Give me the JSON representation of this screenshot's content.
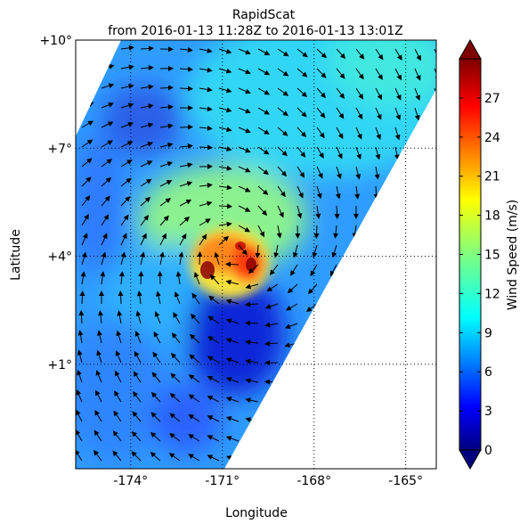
{
  "chart_data": {
    "type": "heatmap",
    "title": "RapidScat",
    "subtitle": "from 2016-01-13 11:28Z to 2016-01-13 13:01Z",
    "xlabel": "Longitude",
    "ylabel": "Latitude",
    "xlim": [
      -175.8,
      -164.0
    ],
    "ylim": [
      -1.9,
      10.0
    ],
    "x_ticks": [
      {
        "value": -174,
        "label": "-174°"
      },
      {
        "value": -171,
        "label": "-171°"
      },
      {
        "value": -168,
        "label": "-168°"
      },
      {
        "value": -165,
        "label": "-165°"
      }
    ],
    "y_ticks": [
      {
        "value": 10,
        "label": "+10°"
      },
      {
        "value": 7,
        "label": "+7°"
      },
      {
        "value": 4,
        "label": "+4°"
      },
      {
        "value": 1,
        "label": "+1°"
      }
    ],
    "grid": true,
    "grid_style": "dotted",
    "swath": {
      "description": "satellite swath, diagonal band from lower-left to upper-right",
      "storm_center": {
        "lon": -170.6,
        "lat": 4.1
      },
      "max_wind_ms": 27,
      "wind_field": "cyclonic circulation (counter-clockwise vectors)"
    },
    "colorbar": {
      "label": "Wind Speed (m/s)",
      "range": [
        0,
        30
      ],
      "ticks": [
        "0",
        "3",
        "6",
        "9",
        "12",
        "15",
        "18",
        "21",
        "24",
        "27"
      ],
      "tick_values": [
        0,
        3,
        6,
        9,
        12,
        15,
        18,
        21,
        24,
        27
      ],
      "colormap": "jet",
      "extend": "both",
      "colors": [
        "#00007f",
        "#0000ff",
        "#007fff",
        "#00ffff",
        "#7fff7f",
        "#ffff00",
        "#ff7f00",
        "#ff0000",
        "#7f0000"
      ]
    }
  }
}
